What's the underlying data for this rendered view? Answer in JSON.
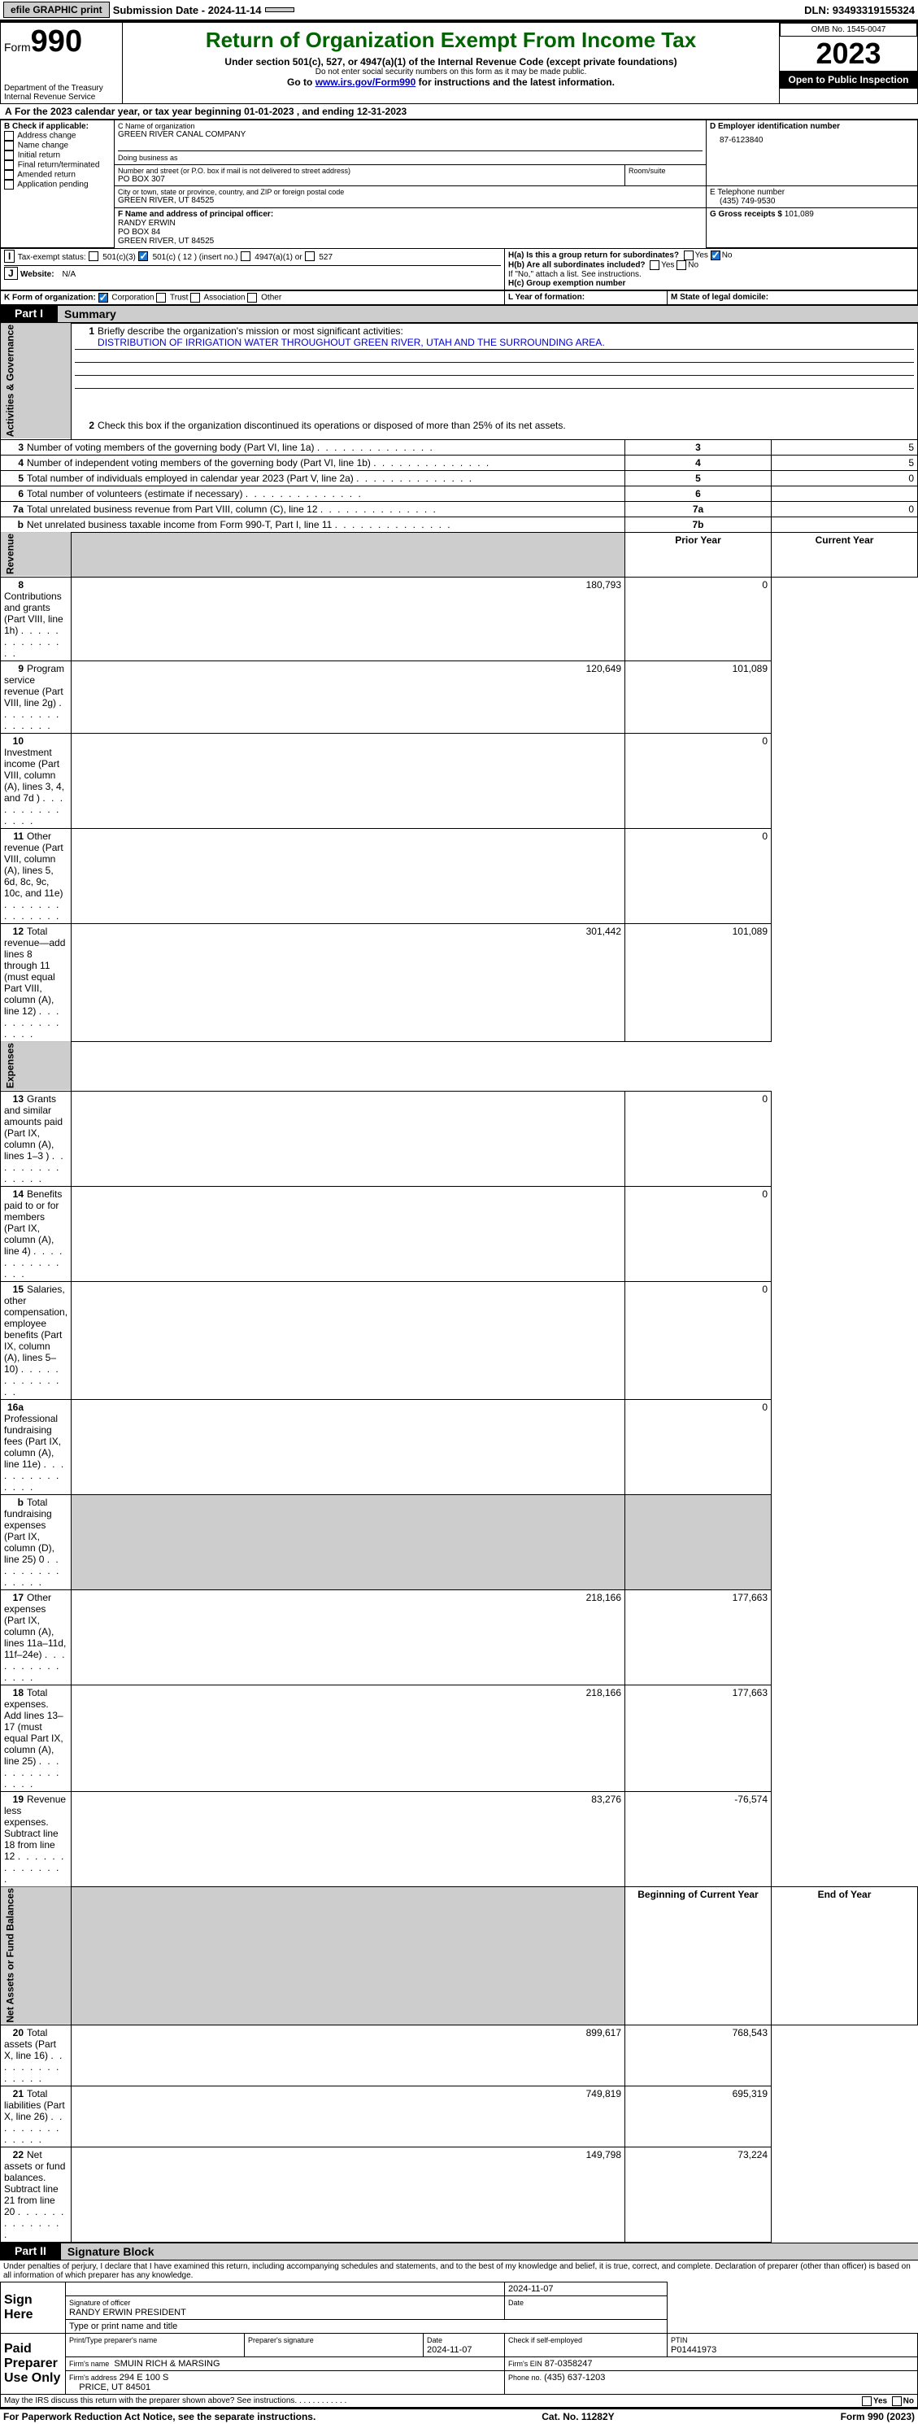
{
  "topbar": {
    "efile": "efile GRAPHIC print",
    "submission": "Submission Date - 2024-11-14",
    "dln": "DLN: 93493319155324"
  },
  "header": {
    "form_word": "Form",
    "form_no": "990",
    "dept": "Department of the Treasury",
    "irs": "Internal Revenue Service",
    "title": "Return of Organization Exempt From Income Tax",
    "subtitle": "Under section 501(c), 527, or 4947(a)(1) of the Internal Revenue Code (except private foundations)",
    "ssn_note": "Do not enter social security numbers on this form as it may be made public.",
    "goto_pre": "Go to ",
    "goto_link": "www.irs.gov/Form990",
    "goto_post": " for instructions and the latest information.",
    "omb": "OMB No. 1545-0047",
    "year": "2023",
    "open": "Open to Public Inspection"
  },
  "line_a": "For the 2023 calendar year, or tax year beginning 01-01-2023   , and ending 12-31-2023",
  "box_b": {
    "label": "B Check if applicable:",
    "opts": [
      "Address change",
      "Name change",
      "Initial return",
      "Final return/terminated",
      "Amended return",
      "Application pending"
    ]
  },
  "box_c": {
    "name_lbl": "C Name of organization",
    "name": "GREEN RIVER CANAL COMPANY",
    "dba_lbl": "Doing business as",
    "addr_lbl": "Number and street (or P.O. box if mail is not delivered to street address)",
    "addr": "PO BOX 307",
    "room_lbl": "Room/suite",
    "city_lbl": "City or town, state or province, country, and ZIP or foreign postal code",
    "city": "GREEN RIVER, UT  84525"
  },
  "box_d": {
    "lbl": "D Employer identification number",
    "val": "87-6123840"
  },
  "box_e": {
    "lbl": "E Telephone number",
    "val": "(435) 749-9530"
  },
  "box_g": {
    "lbl": "G Gross receipts $",
    "val": "101,089"
  },
  "box_f": {
    "lbl": "F  Name and address of principal officer:",
    "l1": "RANDY ERWIN",
    "l2": "PO BOX 84",
    "l3": "GREEN RIVER, UT  84525"
  },
  "box_h": {
    "a": "H(a)  Is this a group return for subordinates?",
    "b": "H(b)  Are all subordinates included?",
    "b2": "If \"No,\" attach a list. See instructions.",
    "c": "H(c)  Group exemption number"
  },
  "box_i": {
    "lbl": "Tax-exempt status:",
    "o1": "501(c)(3)",
    "o2": "501(c) ( 12 ) (insert no.)",
    "o3": "4947(a)(1) or",
    "o4": "527"
  },
  "box_j": {
    "lbl": "Website:",
    "val": "N/A"
  },
  "box_k": {
    "lbl": "K Form of organization:",
    "o1": "Corporation",
    "o2": "Trust",
    "o3": "Association",
    "o4": "Other"
  },
  "box_l": "L Year of formation:",
  "box_m": "M State of legal domicile:",
  "part1": {
    "lbl": "Part I",
    "ttl": "Summary"
  },
  "summary": {
    "l1_lbl": "Briefly describe the organization's mission or most significant activities:",
    "l1_val": "DISTRIBUTION OF IRRIGATION WATER THROUGHOUT GREEN RIVER, UTAH AND THE SURROUNDING AREA.",
    "l2": "Check this box      if the organization discontinued its operations or disposed of more than 25% of its net assets.",
    "lines_gov": [
      {
        "n": "3",
        "t": "Number of voting members of the governing body (Part VI, line 1a)",
        "box": "3",
        "v": "5"
      },
      {
        "n": "4",
        "t": "Number of independent voting members of the governing body (Part VI, line 1b)",
        "box": "4",
        "v": "5"
      },
      {
        "n": "5",
        "t": "Total number of individuals employed in calendar year 2023 (Part V, line 2a)",
        "box": "5",
        "v": "0"
      },
      {
        "n": "6",
        "t": "Total number of volunteers (estimate if necessary)",
        "box": "6",
        "v": ""
      },
      {
        "n": "7a",
        "t": "Total unrelated business revenue from Part VIII, column (C), line 12",
        "box": "7a",
        "v": "0"
      },
      {
        "n": "b",
        "t": "Net unrelated business taxable income from Form 990-T, Part I, line 11",
        "box": "7b",
        "v": ""
      }
    ],
    "hdr_prior": "Prior Year",
    "hdr_curr": "Current Year",
    "rev": [
      {
        "n": "8",
        "t": "Contributions and grants (Part VIII, line 1h)",
        "p": "180,793",
        "c": "0"
      },
      {
        "n": "9",
        "t": "Program service revenue (Part VIII, line 2g)",
        "p": "120,649",
        "c": "101,089"
      },
      {
        "n": "10",
        "t": "Investment income (Part VIII, column (A), lines 3, 4, and 7d )",
        "p": "",
        "c": "0"
      },
      {
        "n": "11",
        "t": "Other revenue (Part VIII, column (A), lines 5, 6d, 8c, 9c, 10c, and 11e)",
        "p": "",
        "c": "0"
      },
      {
        "n": "12",
        "t": "Total revenue—add lines 8 through 11 (must equal Part VIII, column (A), line 12)",
        "p": "301,442",
        "c": "101,089"
      }
    ],
    "exp": [
      {
        "n": "13",
        "t": "Grants and similar amounts paid (Part IX, column (A), lines 1–3 )",
        "p": "",
        "c": "0"
      },
      {
        "n": "14",
        "t": "Benefits paid to or for members (Part IX, column (A), line 4)",
        "p": "",
        "c": "0"
      },
      {
        "n": "15",
        "t": "Salaries, other compensation, employee benefits (Part IX, column (A), lines 5–10)",
        "p": "",
        "c": "0"
      },
      {
        "n": "16a",
        "t": "Professional fundraising fees (Part IX, column (A), line 11e)",
        "p": "",
        "c": "0"
      },
      {
        "n": "b",
        "t": "Total fundraising expenses (Part IX, column (D), line 25) 0",
        "p": "SHADE",
        "c": "SHADE"
      },
      {
        "n": "17",
        "t": "Other expenses (Part IX, column (A), lines 11a–11d, 11f–24e)",
        "p": "218,166",
        "c": "177,663"
      },
      {
        "n": "18",
        "t": "Total expenses. Add lines 13–17 (must equal Part IX, column (A), line 25)",
        "p": "218,166",
        "c": "177,663"
      },
      {
        "n": "19",
        "t": "Revenue less expenses. Subtract line 18 from line 12",
        "p": "83,276",
        "c": "-76,574"
      }
    ],
    "hdr_beg": "Beginning of Current Year",
    "hdr_end": "End of Year",
    "na": [
      {
        "n": "20",
        "t": "Total assets (Part X, line 16)",
        "p": "899,617",
        "c": "768,543"
      },
      {
        "n": "21",
        "t": "Total liabilities (Part X, line 26)",
        "p": "749,819",
        "c": "695,319"
      },
      {
        "n": "22",
        "t": "Net assets or fund balances. Subtract line 21 from line 20",
        "p": "149,798",
        "c": "73,224"
      }
    ],
    "side_gov": "Activities & Governance",
    "side_rev": "Revenue",
    "side_exp": "Expenses",
    "side_na": "Net Assets or Fund Balances"
  },
  "part2": {
    "lbl": "Part II",
    "ttl": "Signature Block"
  },
  "sig": {
    "decl": "Under penalties of perjury, I declare that I have examined this return, including accompanying schedules and statements, and to the best of my knowledge and belief, it is true, correct, and complete. Declaration of preparer (other than officer) is based on all information of which preparer has any knowledge.",
    "sign_here": "Sign Here",
    "date1": "2024-11-07",
    "sig_officer": "Signature of officer",
    "officer": "RANDY ERWIN  PRESIDENT",
    "type_name": "Type or print name and title",
    "paid": "Paid Preparer Use Only",
    "prep_name_lbl": "Print/Type preparer's name",
    "prep_sig_lbl": "Preparer's signature",
    "date_lbl": "Date",
    "date2": "2024-11-07",
    "check_se": "Check       if self-employed",
    "ptin_lbl": "PTIN",
    "ptin": "P01441973",
    "firm_name_lbl": "Firm's name",
    "firm_name": "SMUIN RICH & MARSING",
    "firm_ein_lbl": "Firm's EIN",
    "firm_ein": "87-0358247",
    "firm_addr_lbl": "Firm's address",
    "firm_addr1": "294 E 100 S",
    "firm_addr2": "PRICE, UT  84501",
    "phone_lbl": "Phone no.",
    "phone": "(435) 637-1203",
    "discuss": "May the IRS discuss this return with the preparer shown above? See instructions."
  },
  "footer": {
    "l": "For Paperwork Reduction Act Notice, see the separate instructions.",
    "c": "Cat. No. 11282Y",
    "r": "Form 990 (2023)"
  },
  "yn": {
    "yes": "Yes",
    "no": "No"
  }
}
